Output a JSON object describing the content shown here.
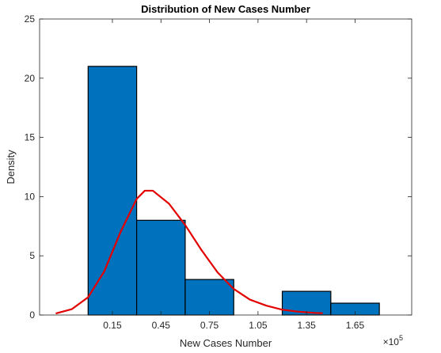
{
  "chart_data": {
    "type": "bar",
    "title": "Distribution of New Cases Number",
    "xlabel": "New Cases Number",
    "ylabel": "Density",
    "x_exponent_base": "×10",
    "x_exponent_power": "5",
    "xlim": [
      -0.3,
      2.0
    ],
    "ylim": [
      0,
      25
    ],
    "xticks": [
      0.15,
      0.45,
      0.75,
      1.05,
      1.35,
      1.65
    ],
    "xtick_labels": [
      "0.15",
      "0.45",
      "0.75",
      "1.05",
      "1.35",
      "1.65"
    ],
    "yticks": [
      0,
      5,
      10,
      15,
      20,
      25
    ],
    "ytick_labels": [
      "0",
      "5",
      "10",
      "15",
      "20",
      "25"
    ],
    "bins": [
      {
        "x0": 0.0,
        "x1": 0.3,
        "value": 21
      },
      {
        "x0": 0.3,
        "x1": 0.6,
        "value": 8
      },
      {
        "x0": 0.6,
        "x1": 0.9,
        "value": 3
      },
      {
        "x0": 0.9,
        "x1": 1.2,
        "value": 0
      },
      {
        "x0": 1.2,
        "x1": 1.5,
        "value": 2
      },
      {
        "x0": 1.5,
        "x1": 1.8,
        "value": 1
      }
    ],
    "series": [
      {
        "type": "line",
        "x": [
          -0.2,
          -0.1,
          0.0,
          0.1,
          0.2,
          0.3,
          0.35,
          0.4,
          0.5,
          0.6,
          0.7,
          0.8,
          0.9,
          1.0,
          1.1,
          1.2,
          1.3,
          1.4,
          1.45
        ],
        "y": [
          0.13,
          0.5,
          1.5,
          3.7,
          7.0,
          9.8,
          10.5,
          10.5,
          9.4,
          7.6,
          5.5,
          3.6,
          2.2,
          1.3,
          0.8,
          0.45,
          0.28,
          0.18,
          0.15
        ]
      }
    ],
    "bar_color": "#0072BD",
    "bar_edge_color": "#000000",
    "line_color": "#E30000",
    "grid": false
  }
}
